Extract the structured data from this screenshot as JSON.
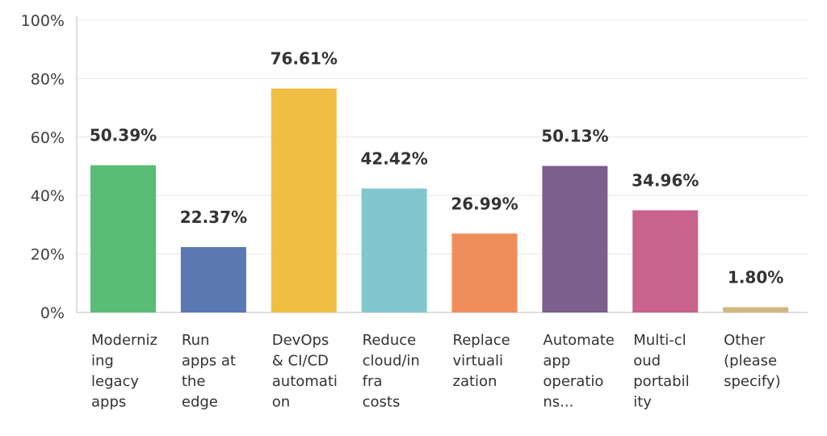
{
  "chart_data": {
    "type": "bar",
    "title": "",
    "xlabel": "",
    "ylabel": "",
    "ylim": [
      0,
      100
    ],
    "y_ticks": [
      "0%",
      "20%",
      "40%",
      "60%",
      "80%",
      "100%"
    ],
    "y_tick_values": [
      0,
      20,
      40,
      60,
      80,
      100
    ],
    "grid": true,
    "legend": "none",
    "categories": [
      [
        "Moderniz",
        "ing",
        "legacy",
        "apps"
      ],
      [
        "Run",
        "apps at",
        "the",
        "edge"
      ],
      [
        "DevOps",
        "& CI/CD",
        "automati",
        "on"
      ],
      [
        "Reduce",
        "cloud/in",
        "fra",
        "costs"
      ],
      [
        "Replace",
        "virtuali",
        "zation"
      ],
      [
        "Automate",
        "app",
        "operatio",
        "ns..."
      ],
      [
        "Multi-cl",
        "oud",
        "portabil",
        "ity"
      ],
      [
        "Other",
        "(please",
        "specify)"
      ]
    ],
    "values": [
      50.39,
      22.37,
      76.61,
      42.42,
      26.99,
      50.13,
      34.96,
      1.8
    ],
    "data_labels": [
      "50.39%",
      "22.37%",
      "76.61%",
      "42.42%",
      "26.99%",
      "50.13%",
      "34.96%",
      "1.80%"
    ],
    "colors": [
      "#5bbd75",
      "#5a78b1",
      "#efbe42",
      "#82c7cd",
      "#ef8e5a",
      "#7b5f8c",
      "#c9628c",
      "#cfb77f"
    ]
  }
}
